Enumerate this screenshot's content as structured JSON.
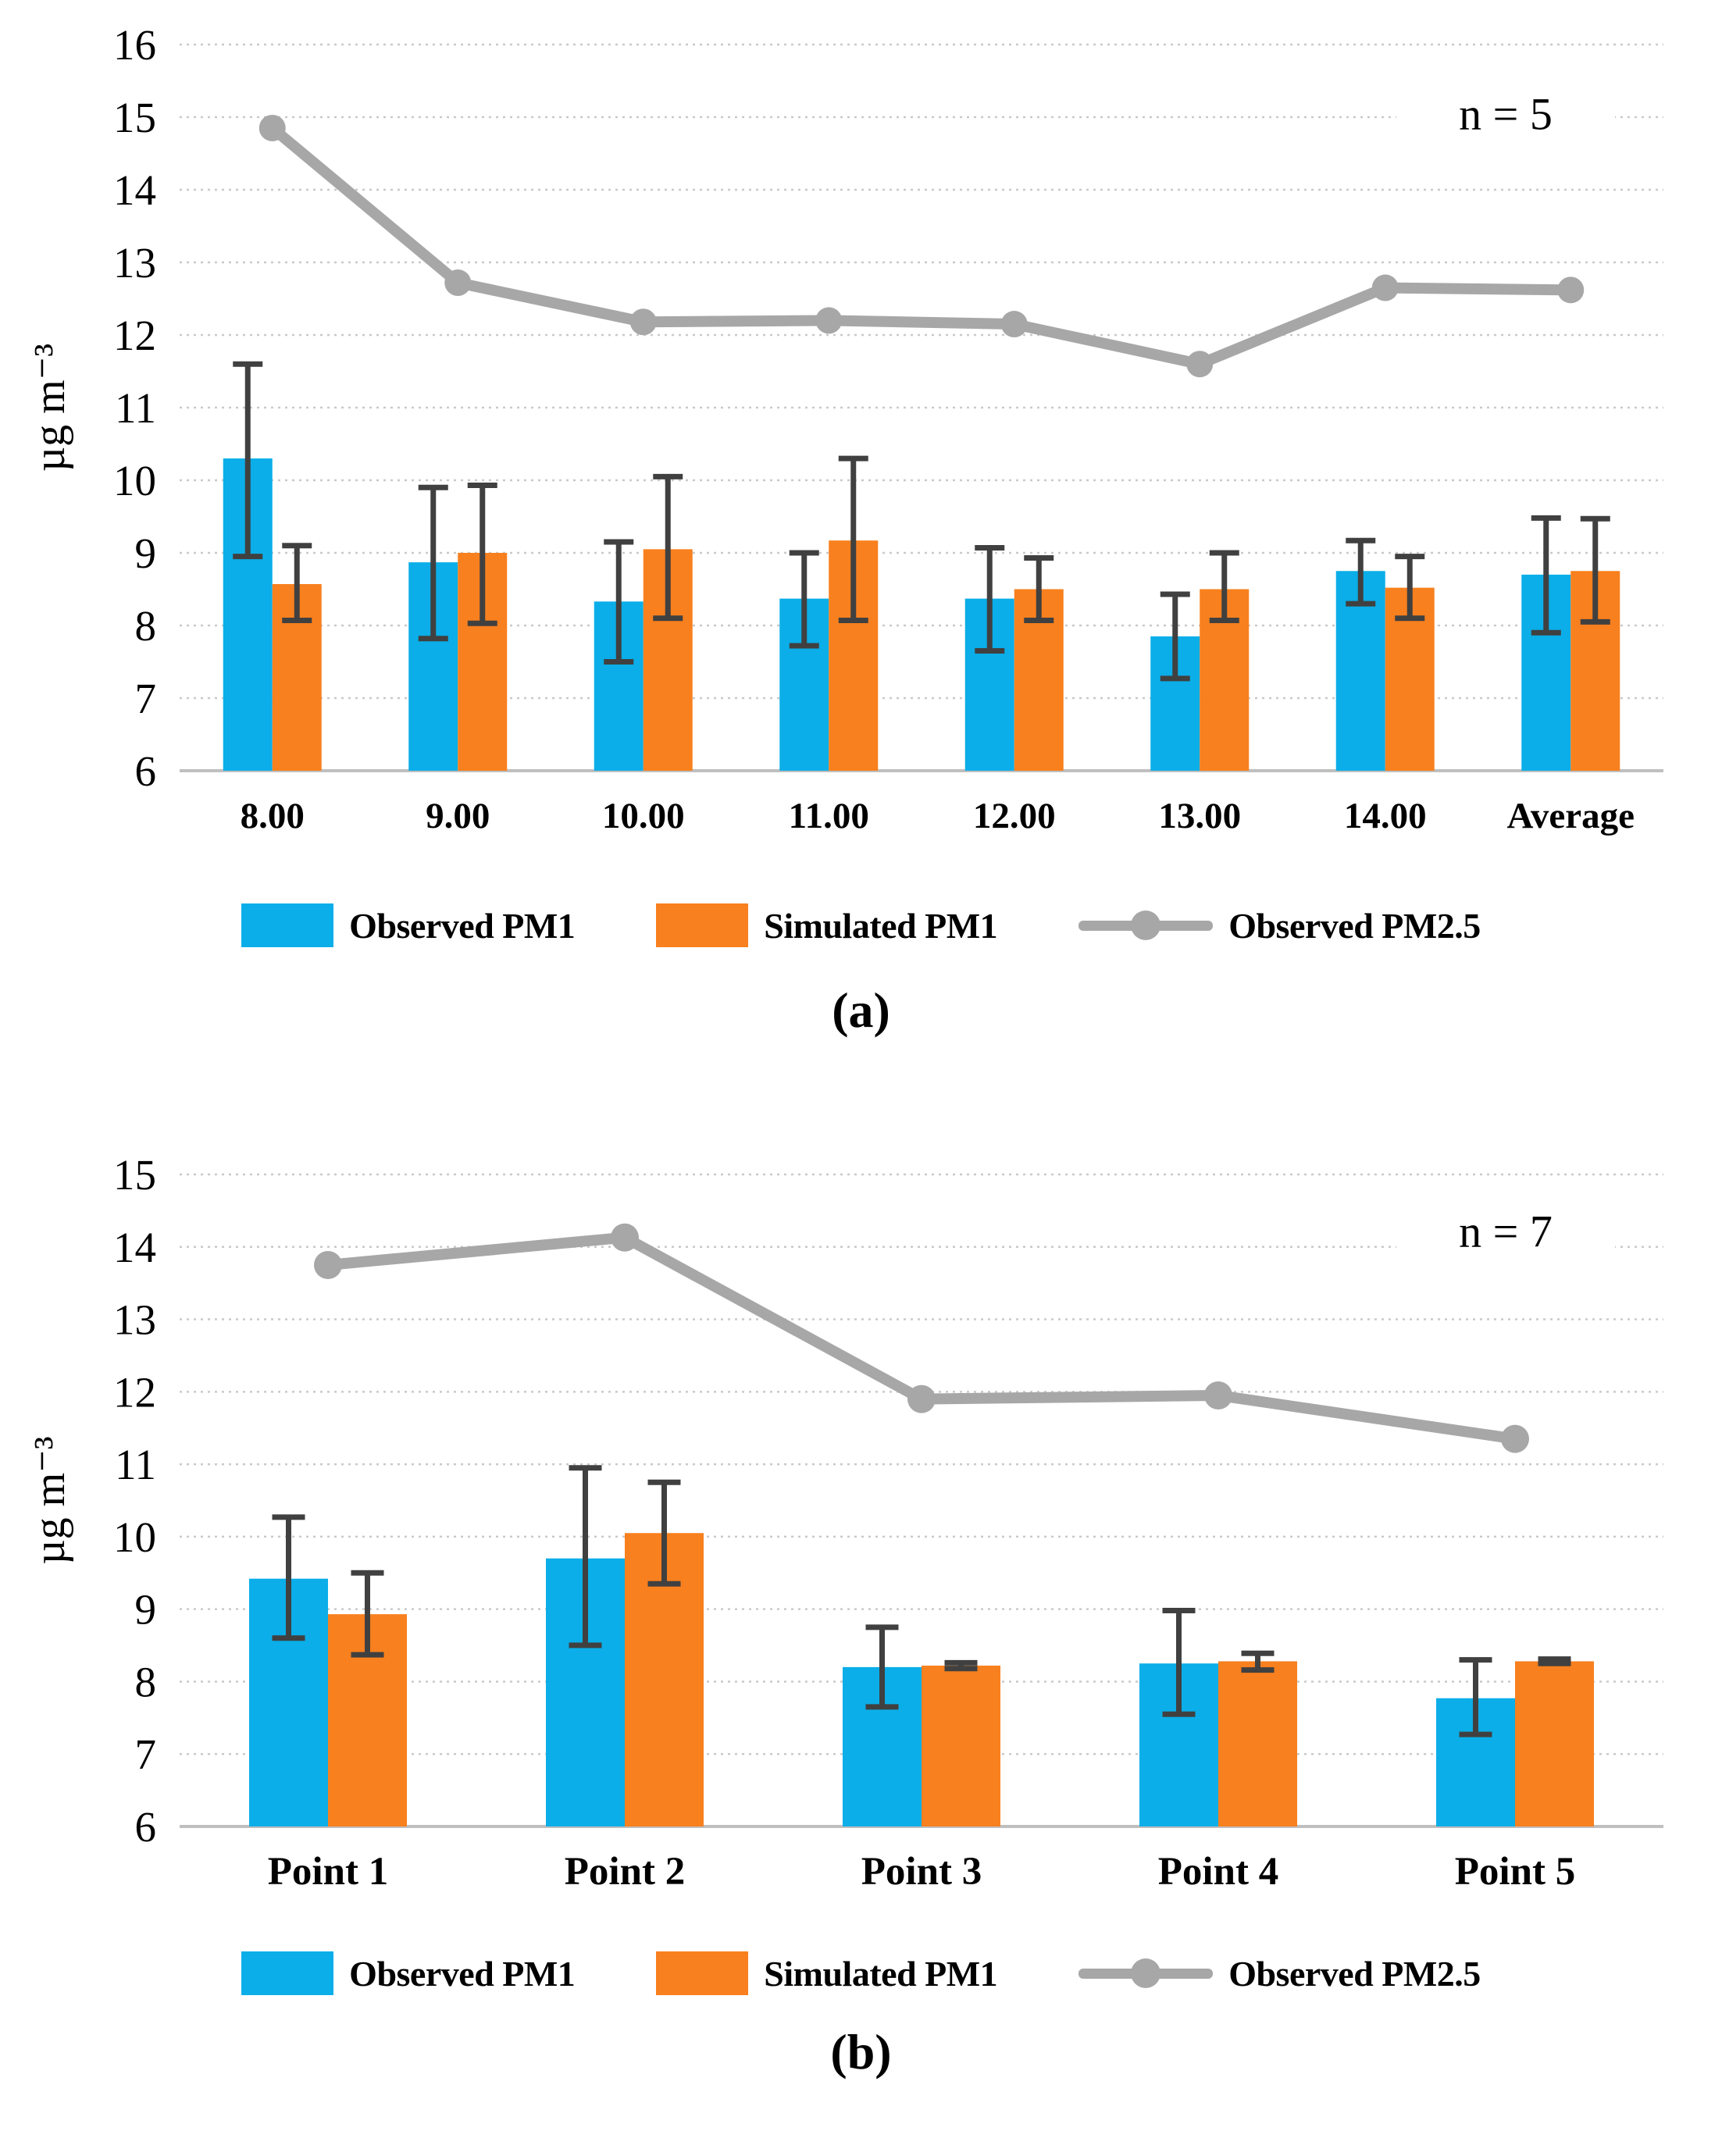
{
  "page": {
    "background": "#ffffff"
  },
  "colors": {
    "observed_pm1": "#0BAEE8",
    "simulated_pm1": "#F8801E",
    "observed_pm25": "#A7A7A7",
    "error_bar": "#404040",
    "gridline": "#C9C9C9",
    "axis_line": "#BFBFBF",
    "text": "#000000"
  },
  "legend": {
    "items": [
      {
        "name": "Observed PM1",
        "type": "bar",
        "color": "#0BAEE8"
      },
      {
        "name": "Simulated PM1",
        "type": "bar",
        "color": "#F8801E"
      },
      {
        "name": "Observed PM2.5",
        "type": "line",
        "color": "#A7A7A7"
      }
    ]
  },
  "chart_data": [
    {
      "id": "a",
      "type": "bar",
      "caption": "(a)",
      "annotation": "n = 5",
      "ylabel": "µg m⁻³",
      "xlabel": "",
      "ylim": [
        6,
        16
      ],
      "ytick_step": 1,
      "grid": true,
      "legend_position": "bottom",
      "categories": [
        "8.00",
        "9.00",
        "10.00",
        "11.00",
        "12.00",
        "13.00",
        "14.00",
        "Average"
      ],
      "series": [
        {
          "name": "Observed PM1",
          "type": "bar",
          "color": "#0BAEE8",
          "values": [
            10.3,
            8.87,
            8.33,
            8.37,
            8.37,
            7.85,
            8.75,
            8.7
          ],
          "error_low": [
            8.95,
            7.82,
            7.5,
            7.72,
            7.65,
            7.27,
            8.3,
            7.9
          ],
          "error_high": [
            11.6,
            9.9,
            9.15,
            9.0,
            9.07,
            8.43,
            9.17,
            9.48
          ]
        },
        {
          "name": "Simulated PM1",
          "type": "bar",
          "color": "#F8801E",
          "values": [
            8.57,
            9.0,
            9.05,
            9.17,
            8.5,
            8.5,
            8.52,
            8.75
          ],
          "error_low": [
            8.07,
            8.03,
            8.1,
            8.07,
            8.07,
            8.07,
            8.1,
            8.05
          ],
          "error_high": [
            9.1,
            9.93,
            10.05,
            10.3,
            8.93,
            9.0,
            8.95,
            9.47
          ]
        },
        {
          "name": "Observed PM2.5",
          "type": "line",
          "color": "#A7A7A7",
          "values": [
            14.85,
            12.72,
            12.18,
            12.2,
            12.15,
            11.6,
            12.65,
            12.62
          ]
        }
      ]
    },
    {
      "id": "b",
      "type": "bar",
      "caption": "(b)",
      "annotation": "n = 7",
      "ylabel": "µg m⁻³",
      "xlabel": "",
      "ylim": [
        6,
        15
      ],
      "ytick_step": 1,
      "grid": true,
      "legend_position": "bottom",
      "categories": [
        "Point 1",
        "Point 2",
        "Point 3",
        "Point 4",
        "Point 5"
      ],
      "series": [
        {
          "name": "Observed PM1",
          "type": "bar",
          "color": "#0BAEE8",
          "values": [
            9.42,
            9.7,
            8.2,
            8.25,
            7.77
          ],
          "error_low": [
            8.6,
            8.5,
            7.65,
            7.55,
            7.27
          ],
          "error_high": [
            10.27,
            10.95,
            8.75,
            8.98,
            8.3
          ]
        },
        {
          "name": "Simulated PM1",
          "type": "bar",
          "color": "#F8801E",
          "values": [
            8.93,
            10.05,
            8.22,
            8.28,
            8.28
          ],
          "error_low": [
            8.37,
            9.35,
            8.18,
            8.16,
            8.25
          ],
          "error_high": [
            9.5,
            10.75,
            8.26,
            8.39,
            8.31
          ]
        },
        {
          "name": "Observed PM2.5",
          "type": "line",
          "color": "#A7A7A7",
          "values": [
            13.75,
            14.13,
            11.9,
            11.95,
            11.35
          ]
        }
      ]
    }
  ]
}
